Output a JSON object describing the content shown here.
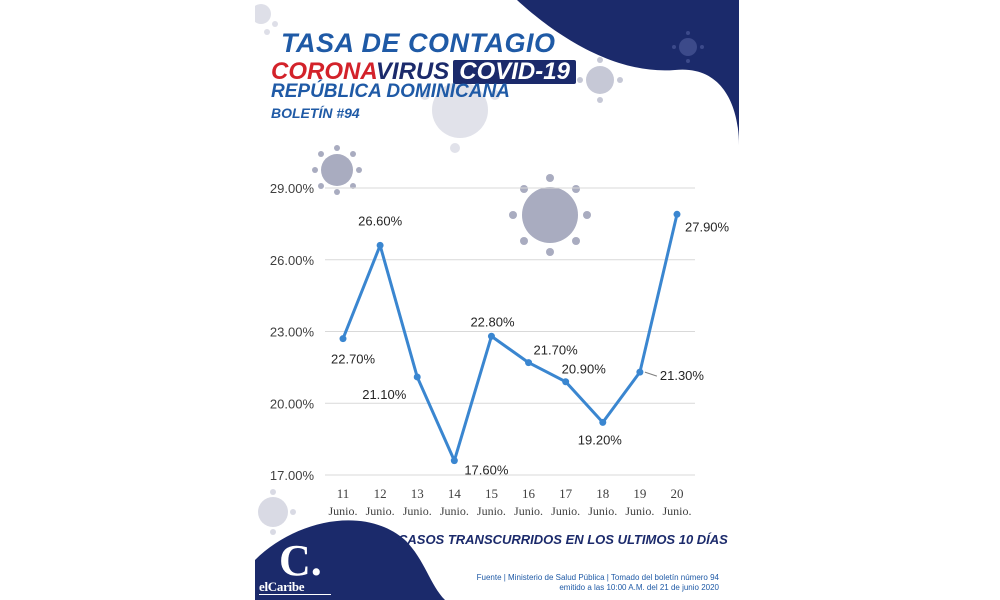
{
  "header": {
    "title": "TASA DE CONTAGIO",
    "corona": "CORONA",
    "virus": "VIRUS",
    "covid": "COVID-19",
    "country": "REPÚBLICA DOMINICANA",
    "bulletin": "BOLETÍN #94"
  },
  "footer": {
    "caption": "CASOS TRANSCURRIDOS EN LOS ULTIMOS 10 DÍAS",
    "source_line_1": "Fuente | Ministerio de Salud Pública | Tomado del boletín número 94",
    "source_line_2": "emitido a las 10:00 A.M. del 21 de junio 2020"
  },
  "logo": {
    "letter": "C.",
    "name": "elCaribe"
  },
  "colors": {
    "navy": "#1b2a6b",
    "blue": "#1f5aa6",
    "red": "#d3222a",
    "line": "#3a86d0",
    "virus_gray": "#a9acc0"
  },
  "chart_data": {
    "type": "line",
    "categories": [
      "11 Junio.",
      "12 Junio.",
      "13 Junio.",
      "14 Junio.",
      "15 Junio.",
      "16 Junio.",
      "17 Junio.",
      "18 Junio.",
      "19 Junio.",
      "20 Junio."
    ],
    "x_days": [
      "11",
      "12",
      "13",
      "14",
      "15",
      "16",
      "17",
      "18",
      "19",
      "20"
    ],
    "x_month": "Junio.",
    "values": [
      22.7,
      26.6,
      21.1,
      17.6,
      22.8,
      21.7,
      20.9,
      19.2,
      21.3,
      27.9
    ],
    "data_labels": [
      "22.70%",
      "26.60%",
      "21.10%",
      "17.60%",
      "22.80%",
      "21.70%",
      "20.90%",
      "19.20%",
      "21.30%",
      "27.90%"
    ],
    "y_ticks": [
      "17.00%",
      "20.00%",
      "23.00%",
      "26.00%",
      "29.00%"
    ],
    "y_tick_values": [
      17,
      20,
      23,
      26,
      29
    ],
    "ylim": [
      17,
      29
    ],
    "title": "",
    "xlabel": "",
    "ylabel": "",
    "grid": true,
    "legend": "none"
  }
}
